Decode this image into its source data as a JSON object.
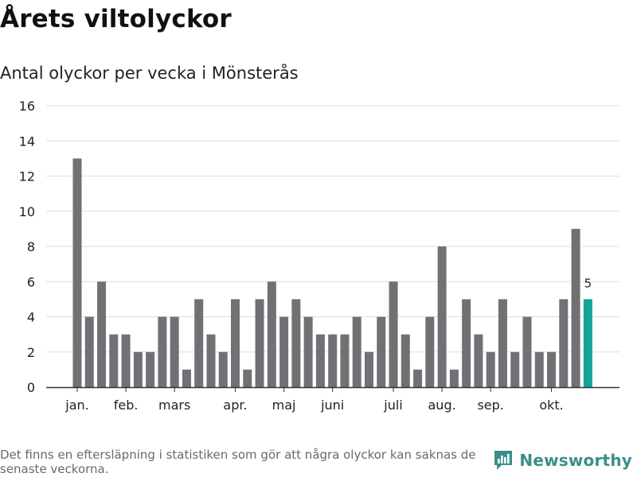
{
  "header": {
    "title": "Årets viltolyckor",
    "subtitle": "Antal olyckor per vecka i Mönsterås"
  },
  "footer": {
    "note": "Det finns en eftersläpning i statistiken som gör att några olyckor kan saknas de senaste veckorna.",
    "brand": "Newsworthy",
    "brand_icon": "newsworthy-logo-icon"
  },
  "colors": {
    "bar": "#717074",
    "highlight": "#13a39a",
    "grid": "#dddddd",
    "axis": "#333333",
    "brand": "#3a8f89"
  },
  "chart_data": {
    "type": "bar",
    "title": "Antal olyckor per vecka i Mönsterås",
    "xlabel": "",
    "ylabel": "",
    "ylim": [
      0,
      16
    ],
    "yticks": [
      0,
      2,
      4,
      6,
      8,
      10,
      12,
      14,
      16
    ],
    "grid": true,
    "series": [
      {
        "name": "Antal olyckor",
        "values": [
          13,
          4,
          6,
          3,
          3,
          2,
          2,
          4,
          4,
          1,
          5,
          3,
          2,
          5,
          1,
          5,
          6,
          4,
          5,
          4,
          3,
          3,
          3,
          4,
          2,
          4,
          6,
          3,
          1,
          4,
          8,
          1,
          5,
          3,
          2,
          5,
          2,
          4,
          2,
          2,
          5,
          9,
          5
        ]
      }
    ],
    "highlight_index": 42,
    "highlight_label": "5",
    "month_labels": [
      {
        "label": "jan.",
        "bar_index": 0
      },
      {
        "label": "feb.",
        "bar_index": 4
      },
      {
        "label": "mars",
        "bar_index": 8
      },
      {
        "label": "apr.",
        "bar_index": 13
      },
      {
        "label": "maj",
        "bar_index": 17
      },
      {
        "label": "juni",
        "bar_index": 21
      },
      {
        "label": "juli",
        "bar_index": 26
      },
      {
        "label": "aug.",
        "bar_index": 30
      },
      {
        "label": "sep.",
        "bar_index": 34
      },
      {
        "label": "okt.",
        "bar_index": 39
      }
    ]
  }
}
